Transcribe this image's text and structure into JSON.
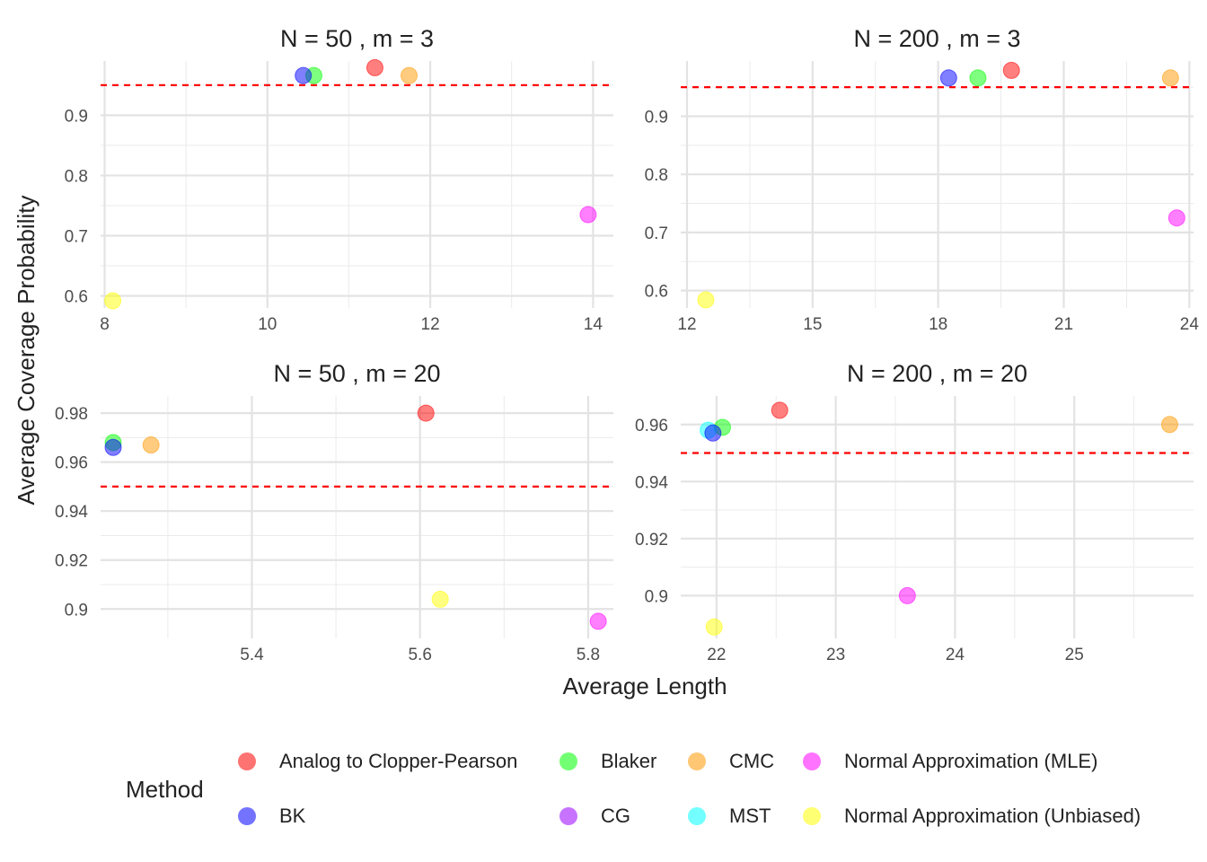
{
  "figure": {
    "xlabel": "Average Length",
    "ylabel": "Average Coverage Probability",
    "reference_line": {
      "y": 0.95,
      "color": "#ff0000",
      "style": "dashed"
    }
  },
  "legend": {
    "title": "Method",
    "items": [
      {
        "label": "Analog to Clopper-Pearson",
        "color": "#ff0000"
      },
      {
        "label": "Blaker",
        "color": "#00ff00"
      },
      {
        "label": "CMC",
        "color": "#ff9900"
      },
      {
        "label": "Normal Approximation (MLE)",
        "color": "#ff00ff"
      },
      {
        "label": "BK",
        "color": "#0000ff"
      },
      {
        "label": "CG",
        "color": "#9900ff"
      },
      {
        "label": "MST",
        "color": "#00ffff"
      },
      {
        "label": "Normal Approximation (Unbiased)",
        "color": "#ffff00"
      }
    ]
  },
  "chart_data": [
    {
      "type": "scatter",
      "title": "N = 50 , m = 3",
      "xlim": [
        7.95,
        14.25
      ],
      "ylim": [
        0.58,
        0.99
      ],
      "xticks": [
        8,
        10,
        12,
        14
      ],
      "xticks_minor": [
        9,
        11,
        13
      ],
      "yticks": [
        0.6,
        0.7,
        0.8,
        0.9
      ],
      "yticks_minor": [
        0.65,
        0.75,
        0.85,
        0.95
      ],
      "points": [
        {
          "method": "Analog to Clopper-Pearson",
          "x": 11.32,
          "y": 0.979
        },
        {
          "method": "Blaker",
          "x": 10.57,
          "y": 0.966
        },
        {
          "method": "CMC",
          "x": 11.74,
          "y": 0.966
        },
        {
          "method": "BK",
          "x": 10.44,
          "y": 0.966
        },
        {
          "method": "Normal Approximation (MLE)",
          "x": 13.94,
          "y": 0.735
        },
        {
          "method": "Normal Approximation (Unbiased)",
          "x": 8.1,
          "y": 0.592
        }
      ]
    },
    {
      "type": "scatter",
      "title": "N = 200 , m = 3",
      "xlim": [
        11.85,
        24.1
      ],
      "ylim": [
        0.57,
        0.995
      ],
      "xticks": [
        12,
        15,
        18,
        21,
        24
      ],
      "xticks_minor": [
        13.5,
        16.5,
        19.5,
        22.5
      ],
      "yticks": [
        0.6,
        0.7,
        0.8,
        0.9
      ],
      "yticks_minor": [
        0.65,
        0.75,
        0.85,
        0.95
      ],
      "points": [
        {
          "method": "Analog to Clopper-Pearson",
          "x": 19.75,
          "y": 0.979
        },
        {
          "method": "Blaker",
          "x": 18.95,
          "y": 0.966
        },
        {
          "method": "CMC",
          "x": 23.55,
          "y": 0.966
        },
        {
          "method": "BK",
          "x": 18.25,
          "y": 0.966
        },
        {
          "method": "Normal Approximation (MLE)",
          "x": 23.7,
          "y": 0.725
        },
        {
          "method": "Normal Approximation (Unbiased)",
          "x": 12.45,
          "y": 0.584
        }
      ]
    },
    {
      "type": "scatter",
      "title": "N = 50 , m = 20",
      "xlim": [
        5.22,
        5.83
      ],
      "ylim": [
        0.888,
        0.987
      ],
      "xticks": [
        5.4,
        5.6,
        5.8
      ],
      "xticks_minor": [
        5.3,
        5.5,
        5.7
      ],
      "yticks": [
        0.9,
        0.92,
        0.94,
        0.96,
        0.98
      ],
      "yticks_minor": [
        0.91,
        0.93,
        0.95,
        0.97
      ],
      "points": [
        {
          "method": "Analog to Clopper-Pearson",
          "x": 5.607,
          "y": 0.98
        },
        {
          "method": "Blaker",
          "x": 5.235,
          "y": 0.968
        },
        {
          "method": "CMC",
          "x": 5.28,
          "y": 0.967
        },
        {
          "method": "BK",
          "x": 5.235,
          "y": 0.966
        },
        {
          "method": "Normal Approximation (MLE)",
          "x": 5.812,
          "y": 0.895
        },
        {
          "method": "Normal Approximation (Unbiased)",
          "x": 5.624,
          "y": 0.904
        }
      ]
    },
    {
      "type": "scatter",
      "title": "N = 200 , m = 20",
      "xlim": [
        21.7,
        26.0
      ],
      "ylim": [
        0.885,
        0.97
      ],
      "xticks": [
        22,
        23,
        24,
        25
      ],
      "xticks_minor": [
        22.5,
        23.5,
        24.5,
        25.5
      ],
      "yticks": [
        0.9,
        0.92,
        0.94,
        0.96
      ],
      "yticks_minor": [
        0.91,
        0.93,
        0.95
      ],
      "points": [
        {
          "method": "Analog to Clopper-Pearson",
          "x": 22.53,
          "y": 0.965
        },
        {
          "method": "Blaker",
          "x": 22.05,
          "y": 0.959
        },
        {
          "method": "CMC",
          "x": 25.8,
          "y": 0.96
        },
        {
          "method": "MST",
          "x": 21.93,
          "y": 0.958
        },
        {
          "method": "BK",
          "x": 21.97,
          "y": 0.957
        },
        {
          "method": "Normal Approximation (MLE)",
          "x": 23.6,
          "y": 0.9
        },
        {
          "method": "Normal Approximation (Unbiased)",
          "x": 21.98,
          "y": 0.889
        }
      ]
    }
  ]
}
